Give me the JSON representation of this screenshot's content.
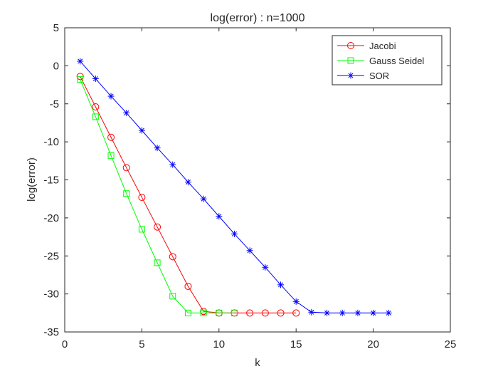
{
  "chart_data": {
    "type": "line",
    "title": "log(error) : n=1000",
    "xlabel": "k",
    "ylabel": "log(error)",
    "xlim": [
      0,
      25
    ],
    "ylim": [
      -35,
      5
    ],
    "xticks": [
      0,
      5,
      10,
      15,
      20,
      25
    ],
    "yticks": [
      5,
      0,
      -5,
      -10,
      -15,
      -20,
      -25,
      -30,
      -35
    ],
    "grid": false,
    "legend_position": "top-right",
    "series": [
      {
        "name": "Jacobi",
        "color": "#ff0000",
        "marker": "circle",
        "x": [
          1,
          2,
          3,
          4,
          5,
          6,
          7,
          8,
          9,
          10,
          11,
          12,
          13,
          14,
          15
        ],
        "y": [
          -1.4,
          -5.4,
          -9.4,
          -13.4,
          -17.3,
          -21.2,
          -25.1,
          -29.0,
          -32.3,
          -32.5,
          -32.5,
          -32.5,
          -32.5,
          -32.5,
          -32.5
        ]
      },
      {
        "name": "Gauss Seidel",
        "color": "#00ff00",
        "marker": "square",
        "x": [
          1,
          2,
          3,
          4,
          5,
          6,
          7,
          8,
          9,
          10,
          11
        ],
        "y": [
          -1.8,
          -6.7,
          -11.8,
          -16.8,
          -21.5,
          -25.9,
          -30.3,
          -32.5,
          -32.5,
          -32.5,
          -32.5
        ]
      },
      {
        "name": "SOR",
        "color": "#0000ff",
        "marker": "asterisk",
        "x": [
          1,
          2,
          3,
          4,
          5,
          6,
          7,
          8,
          9,
          10,
          11,
          12,
          13,
          14,
          15,
          16,
          17,
          18,
          19,
          20,
          21
        ],
        "y": [
          0.6,
          -1.7,
          -4.0,
          -6.2,
          -8.5,
          -10.8,
          -13.0,
          -15.3,
          -17.5,
          -19.8,
          -22.1,
          -24.3,
          -26.5,
          -28.8,
          -31.0,
          -32.4,
          -32.5,
          -32.5,
          -32.5,
          -32.5,
          -32.5
        ]
      }
    ]
  }
}
